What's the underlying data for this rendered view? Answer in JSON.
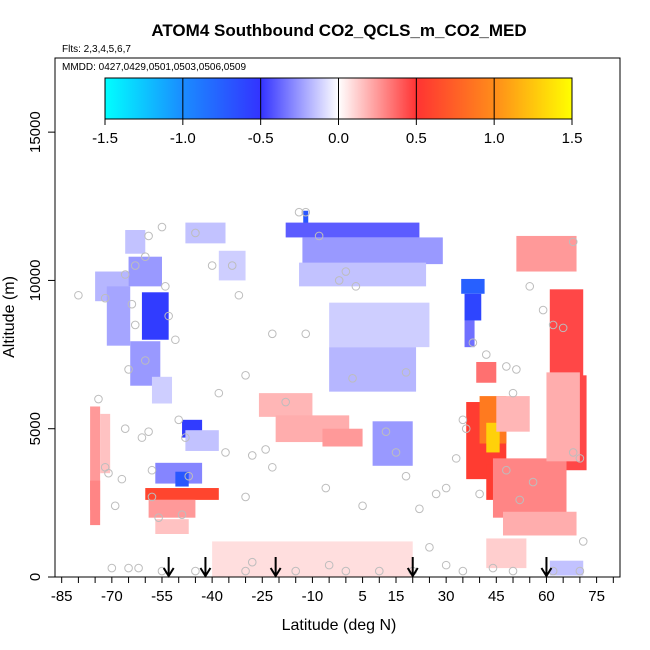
{
  "chart_data": {
    "type": "heatmap",
    "title": "ATOM4 Southbound CO2_QCLS_m_CO2_MED",
    "flights_label": "Flts: 2,3,4,5,6,7",
    "dates_label": "MMDD: 0427,0429,0501,0503,0506,0509",
    "xlabel": "Latitude (deg N)",
    "ylabel": "Altitude (m)",
    "xlim": [
      -87,
      82
    ],
    "ylim": [
      0,
      17500
    ],
    "x_ticks": [
      -85,
      -70,
      -55,
      -40,
      -25,
      -10,
      5,
      15,
      30,
      45,
      60,
      75
    ],
    "x_tick_labels": [
      "-85",
      "-70",
      "-55",
      "-40",
      "-25",
      "-10",
      "5",
      "15",
      "30",
      "45",
      "60",
      "75"
    ],
    "x_minor_step": 5,
    "y_ticks": [
      0,
      5000,
      10000,
      15000
    ],
    "y_tick_labels": [
      "0",
      "5000",
      "10000",
      "15000"
    ],
    "colorbar": {
      "range": [
        -1.5,
        1.5
      ],
      "ticks": [
        -1.5,
        -1.0,
        -0.5,
        0.0,
        0.5,
        1.0,
        1.5
      ],
      "tick_labels": [
        "-1.5",
        "-1.0",
        "-0.5",
        "0.0",
        "0.5",
        "1.0",
        "1.5"
      ]
    },
    "arrow_latitudes": [
      -53,
      -42,
      -21,
      20,
      60
    ],
    "cells": [
      {
        "lat": -75,
        "alt": 4000,
        "w": 3,
        "h": 3500,
        "v": 0.25
      },
      {
        "lat": -75,
        "alt": 2500,
        "w": 3,
        "h": 1500,
        "v": 0.3
      },
      {
        "lat": -72,
        "alt": 4500,
        "w": 3,
        "h": 2000,
        "v": 0.15
      },
      {
        "lat": -70,
        "alt": 9800,
        "w": 10,
        "h": 1000,
        "v": -0.18
      },
      {
        "lat": -68,
        "alt": 8800,
        "w": 7,
        "h": 2000,
        "v": -0.22
      },
      {
        "lat": -63,
        "alt": 11300,
        "w": 6,
        "h": 800,
        "v": -0.15
      },
      {
        "lat": -60,
        "alt": 10300,
        "w": 10,
        "h": 1000,
        "v": -0.25
      },
      {
        "lat": -57,
        "alt": 8800,
        "w": 8,
        "h": 1600,
        "v": -0.55
      },
      {
        "lat": -60,
        "alt": 7200,
        "w": 9,
        "h": 1500,
        "v": -0.25
      },
      {
        "lat": -55,
        "alt": 6300,
        "w": 6,
        "h": 900,
        "v": -0.12
      },
      {
        "lat": -42,
        "alt": 11600,
        "w": 12,
        "h": 700,
        "v": -0.15
      },
      {
        "lat": -34,
        "alt": 10500,
        "w": 8,
        "h": 1000,
        "v": -0.12
      },
      {
        "lat": -12,
        "alt": 12000,
        "w": 1.5,
        "h": 700,
        "v": -0.7
      },
      {
        "lat": 2,
        "alt": 11700,
        "w": 40,
        "h": 500,
        "v": -0.4
      },
      {
        "lat": 8,
        "alt": 11000,
        "w": 42,
        "h": 900,
        "v": -0.25
      },
      {
        "lat": 5,
        "alt": 10200,
        "w": 38,
        "h": 800,
        "v": -0.15
      },
      {
        "lat": 10,
        "alt": 8500,
        "w": 30,
        "h": 1500,
        "v": -0.12
      },
      {
        "lat": 8,
        "alt": 7000,
        "w": 26,
        "h": 1500,
        "v": -0.18
      },
      {
        "lat": 14,
        "alt": 4500,
        "w": 12,
        "h": 1500,
        "v": -0.25
      },
      {
        "lat": 38,
        "alt": 9800,
        "w": 7,
        "h": 500,
        "v": -0.75
      },
      {
        "lat": 38,
        "alt": 9100,
        "w": 5,
        "h": 900,
        "v": -0.6
      },
      {
        "lat": 37,
        "alt": 8200,
        "w": 3,
        "h": 900,
        "v": -0.35
      },
      {
        "lat": -46,
        "alt": 5000,
        "w": 6,
        "h": 600,
        "v": -0.55
      },
      {
        "lat": -43,
        "alt": 4600,
        "w": 10,
        "h": 700,
        "v": -0.15
      },
      {
        "lat": -50,
        "alt": 3500,
        "w": 14,
        "h": 700,
        "v": -0.3
      },
      {
        "lat": -49,
        "alt": 3300,
        "w": 4,
        "h": 500,
        "v": -0.7
      },
      {
        "lat": -49,
        "alt": 2800,
        "w": 22,
        "h": 400,
        "v": 0.6
      },
      {
        "lat": -52,
        "alt": 2300,
        "w": 14,
        "h": 600,
        "v": 0.25
      },
      {
        "lat": -52,
        "alt": 1700,
        "w": 10,
        "h": 500,
        "v": 0.15
      },
      {
        "lat": -18,
        "alt": 5800,
        "w": 16,
        "h": 800,
        "v": 0.18
      },
      {
        "lat": -10,
        "alt": 5000,
        "w": 22,
        "h": 900,
        "v": 0.2
      },
      {
        "lat": -1,
        "alt": 4700,
        "w": 12,
        "h": 600,
        "v": 0.25
      },
      {
        "lat": -10,
        "alt": 600,
        "w": 60,
        "h": 1200,
        "v": 0.08
      },
      {
        "lat": 42,
        "alt": 4600,
        "w": 12,
        "h": 2600,
        "v": 0.55
      },
      {
        "lat": 44,
        "alt": 5300,
        "w": 8,
        "h": 1600,
        "v": 0.9
      },
      {
        "lat": 44,
        "alt": 4700,
        "w": 4,
        "h": 1000,
        "v": 1.3
      },
      {
        "lat": 46,
        "alt": 3200,
        "w": 8,
        "h": 1200,
        "v": 0.55
      },
      {
        "lat": 42,
        "alt": 6900,
        "w": 6,
        "h": 700,
        "v": 0.35
      },
      {
        "lat": 50,
        "alt": 5500,
        "w": 10,
        "h": 1200,
        "v": 0.18
      },
      {
        "lat": 55,
        "alt": 3000,
        "w": 22,
        "h": 2000,
        "v": 0.3
      },
      {
        "lat": 58,
        "alt": 1800,
        "w": 22,
        "h": 800,
        "v": 0.2
      },
      {
        "lat": 60,
        "alt": 10900,
        "w": 18,
        "h": 1200,
        "v": 0.25
      },
      {
        "lat": 66,
        "alt": 8200,
        "w": 10,
        "h": 3000,
        "v": 0.45
      },
      {
        "lat": 69,
        "alt": 5200,
        "w": 6,
        "h": 3200,
        "v": 0.45
      },
      {
        "lat": 65,
        "alt": 5400,
        "w": 10,
        "h": 3000,
        "v": 0.2
      },
      {
        "lat": 48,
        "alt": 800,
        "w": 12,
        "h": 1000,
        "v": 0.12
      },
      {
        "lat": 66,
        "alt": 300,
        "w": 10,
        "h": 500,
        "v": -0.15
      }
    ],
    "points": [
      [
        -80,
        9500
      ],
      [
        -72,
        9400
      ],
      [
        -74,
        6000
      ],
      [
        -72,
        3700
      ],
      [
        -71,
        3500
      ],
      [
        -69,
        2400
      ],
      [
        -67,
        3300
      ],
      [
        -66,
        5000
      ],
      [
        -65,
        7000
      ],
      [
        -63,
        8500
      ],
      [
        -64,
        9200
      ],
      [
        -60,
        7300
      ],
      [
        -61,
        4700
      ],
      [
        -59,
        4900
      ],
      [
        -58,
        3600
      ],
      [
        -58,
        2700
      ],
      [
        -56,
        2000
      ],
      [
        -54,
        9800
      ],
      [
        -53,
        8800
      ],
      [
        -51,
        8000
      ],
      [
        -50,
        5300
      ],
      [
        -48,
        4700
      ],
      [
        -47,
        3400
      ],
      [
        -49,
        2100
      ],
      [
        -55,
        11800
      ],
      [
        -59,
        11500
      ],
      [
        -60,
        10800
      ],
      [
        -66,
        10200
      ],
      [
        -63,
        10500
      ],
      [
        -45,
        11600
      ],
      [
        -40,
        10500
      ],
      [
        -34,
        10500
      ],
      [
        -32,
        9500
      ],
      [
        -30,
        6800
      ],
      [
        -38,
        6200
      ],
      [
        -36,
        4200
      ],
      [
        -30,
        2700
      ],
      [
        -28,
        4100
      ],
      [
        -24,
        4300
      ],
      [
        -22,
        3700
      ],
      [
        -18,
        5900
      ],
      [
        -22,
        8200
      ],
      [
        -12,
        12300
      ],
      [
        -14,
        12300
      ],
      [
        -8,
        11500
      ],
      [
        -2,
        10000
      ],
      [
        3,
        9800
      ],
      [
        0,
        10300
      ],
      [
        2,
        6700
      ],
      [
        -6,
        3000
      ],
      [
        5,
        2400
      ],
      [
        -12,
        8200
      ],
      [
        12,
        4900
      ],
      [
        15,
        4200
      ],
      [
        18,
        6900
      ],
      [
        18,
        3400
      ],
      [
        22,
        2300
      ],
      [
        25,
        1000
      ],
      [
        27,
        2800
      ],
      [
        30,
        3000
      ],
      [
        33,
        4000
      ],
      [
        35,
        5300
      ],
      [
        38,
        7900
      ],
      [
        42,
        7500
      ],
      [
        48,
        7100
      ],
      [
        51,
        7000
      ],
      [
        50,
        6200
      ],
      [
        48,
        3600
      ],
      [
        52,
        2600
      ],
      [
        55,
        9800
      ],
      [
        56,
        3200
      ],
      [
        59,
        9000
      ],
      [
        62,
        8500
      ],
      [
        65,
        8400
      ],
      [
        68,
        4200
      ],
      [
        70,
        4000
      ],
      [
        71,
        1200
      ],
      [
        68,
        11300
      ],
      [
        36,
        5000
      ],
      [
        40,
        2800
      ],
      [
        -70,
        300
      ],
      [
        -65,
        300
      ],
      [
        -62,
        300
      ],
      [
        -55,
        200
      ],
      [
        -45,
        200
      ],
      [
        -30,
        200
      ],
      [
        -15,
        200
      ],
      [
        0,
        200
      ],
      [
        10,
        200
      ],
      [
        20,
        200
      ],
      [
        35,
        200
      ],
      [
        50,
        200
      ],
      [
        62,
        200
      ],
      [
        70,
        200
      ],
      [
        -5,
        400
      ],
      [
        -28,
        500
      ],
      [
        30,
        400
      ],
      [
        44,
        300
      ]
    ]
  }
}
